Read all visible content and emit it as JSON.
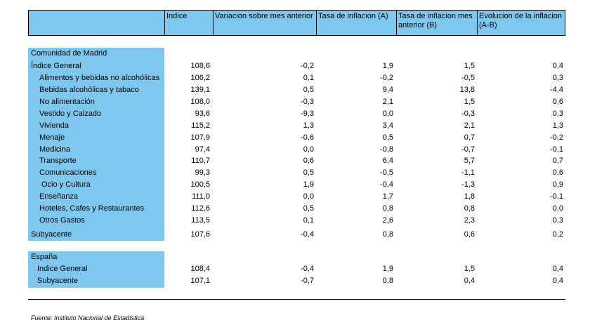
{
  "header": {
    "indice": "Indice",
    "variacion": "Variacion sobre mes anterior",
    "tasa_a": "Tasa de inflacion (A)",
    "tasa_b_line1": "Tasa de inflacion mes",
    "tasa_b_line2": "anterior (B)",
    "evolucion_line1": "Evolucion de la inflacion",
    "evolucion_line2": "(A-B)"
  },
  "madrid": {
    "title": "Comunidad de Madrid",
    "rows": [
      {
        "label": "Índice General",
        "indice": "108,6",
        "variacion": "-0,2",
        "tasa_a": "1,9",
        "tasa_b": "1,5",
        "evolucion": "0,4"
      },
      {
        "label": "Alimentos y bebidas no alcohólicas",
        "indice": "106,2",
        "variacion": "0,1",
        "tasa_a": "-0,2",
        "tasa_b": "-0,5",
        "evolucion": "0,3"
      },
      {
        "label": "Bebidas alcohólicas y tabaco",
        "indice": "139,1",
        "variacion": "0,5",
        "tasa_a": "9,4",
        "tasa_b": "13,8",
        "evolucion": "-4,4"
      },
      {
        "label": "No alimentación",
        "indice": "108,0",
        "variacion": "-0,3",
        "tasa_a": "2,1",
        "tasa_b": "1,5",
        "evolucion": "0,6"
      },
      {
        "label": "Vestido y Calzado",
        "indice": "93,6",
        "variacion": "-9,3",
        "tasa_a": "0,0",
        "tasa_b": "-0,3",
        "evolucion": "0,3"
      },
      {
        "label": "Vivienda",
        "indice": "115,2",
        "variacion": "1,3",
        "tasa_a": "3,4",
        "tasa_b": "2,1",
        "evolucion": "1,3"
      },
      {
        "label": "Menaje",
        "indice": "107,9",
        "variacion": "-0,6",
        "tasa_a": "0,5",
        "tasa_b": "0,7",
        "evolucion": "-0,2"
      },
      {
        "label": "Medicina",
        "indice": "97,4",
        "variacion": "0,0",
        "tasa_a": "-0,8",
        "tasa_b": "-0,7",
        "evolucion": "-0,1"
      },
      {
        "label": "Transporte",
        "indice": "110,7",
        "variacion": "0,6",
        "tasa_a": "6,4",
        "tasa_b": "5,7",
        "evolucion": "0,7"
      },
      {
        "label": "Comunicaciones",
        "indice": "99,3",
        "variacion": "0,5",
        "tasa_a": "-0,5",
        "tasa_b": "-1,1",
        "evolucion": "0,6"
      },
      {
        "label": "Ocio y Cultura",
        "indice": "100,5",
        "variacion": "1,9",
        "tasa_a": "-0,4",
        "tasa_b": "-1,3",
        "evolucion": "0,9"
      },
      {
        "label": "Enseñanza",
        "indice": "111,0",
        "variacion": "0,0",
        "tasa_a": "1,7",
        "tasa_b": "1,8",
        "evolucion": "-0,1"
      },
      {
        "label": "Hoteles, Cafes y Restaurantes",
        "indice": "112,6",
        "variacion": "0,5",
        "tasa_a": "0,8",
        "tasa_b": "0,8",
        "evolucion": "0,0"
      },
      {
        "label": "Otros Gastos",
        "indice": "113,5",
        "variacion": "0,1",
        "tasa_a": "2,6",
        "tasa_b": "2,3",
        "evolucion": "0,3"
      }
    ],
    "subyacente": {
      "label": "Subyacente",
      "indice": "107,6",
      "variacion": "-0,4",
      "tasa_a": "0,8",
      "tasa_b": "0,6",
      "evolucion": "0,2"
    }
  },
  "espana": {
    "title": "España",
    "rows": [
      {
        "label": "Indice General",
        "indice": "108,4",
        "variacion": "-0,4",
        "tasa_a": "1,9",
        "tasa_b": "1,5",
        "evolucion": "0,4"
      },
      {
        "label": "Subyacente",
        "indice": "107,1",
        "variacion": "-0,7",
        "tasa_a": "0,8",
        "tasa_b": "0,4",
        "evolucion": "0,4"
      }
    ]
  },
  "source": "Fuente: Instituto Nacional de Estadística"
}
